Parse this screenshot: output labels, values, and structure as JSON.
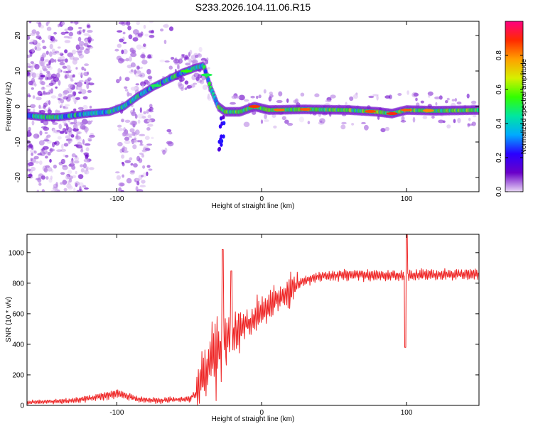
{
  "figure_title": "S233.2026.104.11.06.R15",
  "chart_data": [
    {
      "type": "heatmap",
      "title": "S233.2026.104.11.06.R15",
      "xlabel": "Height of straight line (km)",
      "ylabel": "Frequency (Hz)",
      "xlim": [
        -162,
        150
      ],
      "ylim": [
        -24,
        24
      ],
      "xticks": [
        -100,
        0,
        100
      ],
      "yticks": [
        -20,
        -10,
        0,
        10,
        20
      ],
      "colorbar": {
        "label": "Normalized spectral amplitude",
        "range": [
          0,
          1
        ],
        "ticks": [
          0.0,
          0.2,
          0.4,
          0.6,
          0.8
        ],
        "tick_labels": [
          "0.0",
          "0.2",
          "0.4",
          "0.6",
          "0.8"
        ],
        "colormap": [
          "#e8d6f5",
          "#6a00c8",
          "#2a00ff",
          "#00aaff",
          "#00e6a0",
          "#33ff00",
          "#d6f000",
          "#ffa000",
          "#ff2a00",
          "#ff0080"
        ]
      },
      "ridge": [
        {
          "x": -162,
          "y": -2.5
        },
        {
          "x": -150,
          "y": -3.0
        },
        {
          "x": -140,
          "y": -3.0
        },
        {
          "x": -130,
          "y": -2.5
        },
        {
          "x": -120,
          "y": -2.0
        },
        {
          "x": -105,
          "y": -1.5
        },
        {
          "x": -95,
          "y": 0.0
        },
        {
          "x": -85,
          "y": 3.0
        },
        {
          "x": -75,
          "y": 5.5
        },
        {
          "x": -65,
          "y": 7.5
        },
        {
          "x": -55,
          "y": 9.5
        },
        {
          "x": -45,
          "y": 11.0
        },
        {
          "x": -40,
          "y": 11.5
        },
        {
          "x": -35,
          "y": 5.0
        },
        {
          "x": -30,
          "y": 0.0
        },
        {
          "x": -25,
          "y": -1.5
        },
        {
          "x": -15,
          "y": -1.5
        },
        {
          "x": -5,
          "y": 0.0
        },
        {
          "x": 5,
          "y": -1.0
        },
        {
          "x": 30,
          "y": -0.8
        },
        {
          "x": 60,
          "y": -1.0
        },
        {
          "x": 80,
          "y": -1.5
        },
        {
          "x": 90,
          "y": -2.0
        },
        {
          "x": 100,
          "y": -1.0
        },
        {
          "x": 120,
          "y": -1.2
        },
        {
          "x": 150,
          "y": -1.0
        }
      ]
    },
    {
      "type": "line",
      "title": "",
      "xlabel": "Height of straight line (km)",
      "ylabel": "SNR (10 * v/v)",
      "xlim": [
        -162,
        150
      ],
      "ylim": [
        0,
        1120
      ],
      "xticks": [
        -100,
        0,
        100
      ],
      "yticks": [
        0,
        200,
        400,
        600,
        800,
        1000
      ],
      "color": "#ee2222",
      "series": [
        {
          "name": "SNR",
          "envelope": [
            {
              "x": -162,
              "y": 20
            },
            {
              "x": -130,
              "y": 30
            },
            {
              "x": -110,
              "y": 60
            },
            {
              "x": -100,
              "y": 80
            },
            {
              "x": -85,
              "y": 40
            },
            {
              "x": -70,
              "y": 30
            },
            {
              "x": -60,
              "y": 40
            },
            {
              "x": -50,
              "y": 40
            },
            {
              "x": -45,
              "y": 80
            },
            {
              "x": -40,
              "y": 200
            },
            {
              "x": -35,
              "y": 300
            },
            {
              "x": -30,
              "y": 380
            },
            {
              "x": -25,
              "y": 420
            },
            {
              "x": -20,
              "y": 450
            },
            {
              "x": -10,
              "y": 540
            },
            {
              "x": 0,
              "y": 600
            },
            {
              "x": 10,
              "y": 680
            },
            {
              "x": 20,
              "y": 760
            },
            {
              "x": 30,
              "y": 820
            },
            {
              "x": 40,
              "y": 845
            },
            {
              "x": 60,
              "y": 855
            },
            {
              "x": 80,
              "y": 850
            },
            {
              "x": 100,
              "y": 850
            },
            {
              "x": 120,
              "y": 855
            },
            {
              "x": 150,
              "y": 860
            }
          ],
          "features": [
            {
              "x": -27,
              "y": 1020,
              "note": "spike"
            },
            {
              "x": -21,
              "y": 880,
              "note": "spike"
            },
            {
              "x": 99,
              "y": 380,
              "note": "dip"
            },
            {
              "x": 100,
              "y": 1120,
              "note": "spike"
            }
          ]
        }
      ]
    }
  ]
}
